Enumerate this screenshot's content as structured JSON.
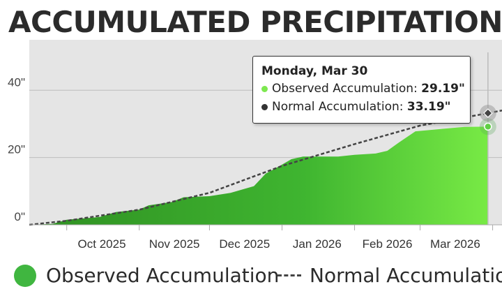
{
  "chart_data": {
    "type": "area",
    "title": "ACCUMULATED PRECIPITATION",
    "xlabel": "",
    "ylabel": "",
    "y_ticks": [
      "0\"",
      "20\"",
      "40\""
    ],
    "ylim": [
      0,
      55
    ],
    "x_ticks": [
      "Oct 2025",
      "Nov 2025",
      "Dec 2025",
      "Jan 2026",
      "Feb 2026",
      "Mar 2026"
    ],
    "xlim": [
      "2025-09-15",
      "2026-04-05"
    ],
    "grid": true,
    "legend_position": "bottom",
    "series": [
      {
        "name": "Observed Accumulation",
        "style": "area",
        "color": "#40b640",
        "points": [
          [
            "2025-09-15",
            0
          ],
          [
            "2025-09-25",
            0.3
          ],
          [
            "2025-10-01",
            1.5
          ],
          [
            "2025-10-15",
            2.3
          ],
          [
            "2025-10-22",
            3.8
          ],
          [
            "2025-11-01",
            4.5
          ],
          [
            "2025-11-05",
            5.8
          ],
          [
            "2025-11-15",
            6.8
          ],
          [
            "2025-11-20",
            8.2
          ],
          [
            "2025-12-01",
            8.5
          ],
          [
            "2025-12-10",
            9.5
          ],
          [
            "2025-12-20",
            11.5
          ],
          [
            "2025-12-25",
            15.2
          ],
          [
            "2025-12-31",
            17.5
          ],
          [
            "2026-01-05",
            19.5
          ],
          [
            "2026-01-10",
            20.3
          ],
          [
            "2026-01-25",
            20.3
          ],
          [
            "2026-02-01",
            20.8
          ],
          [
            "2026-02-10",
            21.2
          ],
          [
            "2026-02-15",
            22.0
          ],
          [
            "2026-02-20",
            24.5
          ],
          [
            "2026-02-27",
            27.8
          ],
          [
            "2026-03-10",
            28.5
          ],
          [
            "2026-03-20",
            29.1
          ],
          [
            "2026-03-30",
            29.19
          ]
        ]
      },
      {
        "name": "Normal Accumulation",
        "style": "dashed-line",
        "color": "#444444",
        "points": [
          [
            "2025-09-15",
            0
          ],
          [
            "2025-10-01",
            1.2
          ],
          [
            "2025-11-01",
            4.5
          ],
          [
            "2025-12-01",
            9.5
          ],
          [
            "2026-01-01",
            17.5
          ],
          [
            "2026-02-01",
            24.0
          ],
          [
            "2026-03-01",
            29.5
          ],
          [
            "2026-03-30",
            33.19
          ],
          [
            "2026-04-05",
            34.0
          ]
        ]
      }
    ],
    "tooltip": {
      "date": "Monday, Mar 30",
      "rows": [
        {
          "label": "Observed Accumulation:",
          "value": "29.19\"",
          "color": "#7de84f"
        },
        {
          "label": "Normal Accumulation:",
          "value": "33.19\"",
          "color": "#333333"
        }
      ]
    }
  }
}
